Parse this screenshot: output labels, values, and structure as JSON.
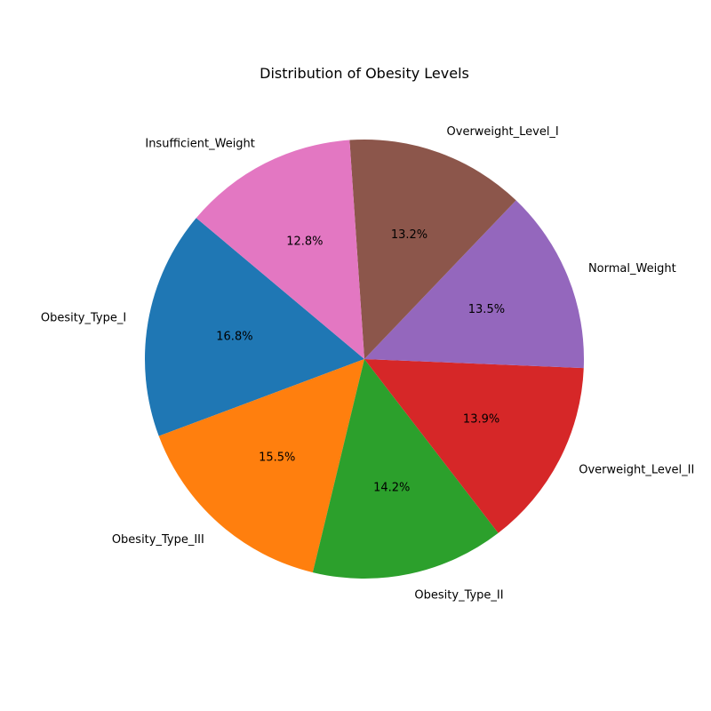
{
  "chart_data": {
    "type": "pie",
    "title": "Distribution of Obesity Levels",
    "slices": [
      {
        "label": "Obesity_Type_I",
        "value": 16.8,
        "pct_label": "16.8%",
        "color": "#1f77b4"
      },
      {
        "label": "Obesity_Type_III",
        "value": 15.5,
        "pct_label": "15.5%",
        "color": "#ff7f0e"
      },
      {
        "label": "Obesity_Type_II",
        "value": 14.2,
        "pct_label": "14.2%",
        "color": "#2ca02c"
      },
      {
        "label": "Overweight_Level_II",
        "value": 13.9,
        "pct_label": "13.9%",
        "color": "#d62728"
      },
      {
        "label": "Normal_Weight",
        "value": 13.5,
        "pct_label": "13.5%",
        "color": "#9467bd"
      },
      {
        "label": "Overweight_Level_I",
        "value": 13.2,
        "pct_label": "13.2%",
        "color": "#8c564b"
      },
      {
        "label": "Insufficient_Weight",
        "value": 12.8,
        "pct_label": "12.8%",
        "color": "#e377c2"
      }
    ],
    "start_angle_deg": 140,
    "direction": "counterclockwise"
  }
}
